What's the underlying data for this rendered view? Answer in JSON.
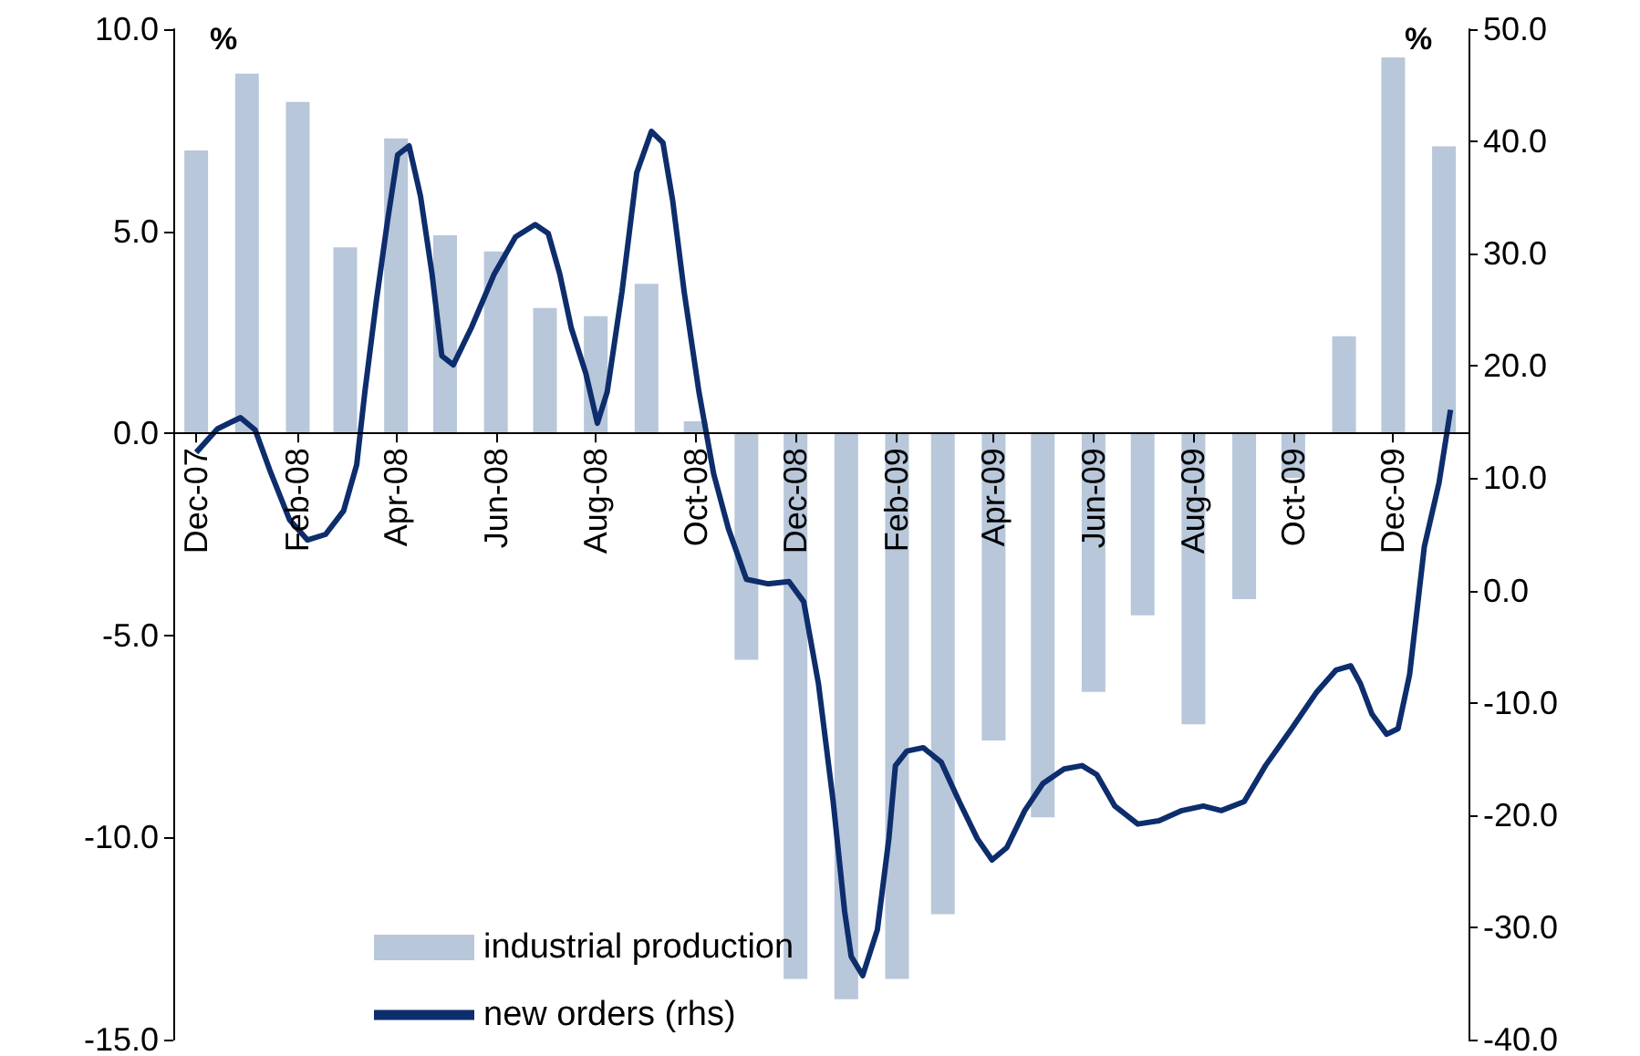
{
  "chart_data": {
    "type": "bar",
    "ylabel": "%",
    "y2label": "%",
    "legend": "bottom",
    "x": [
      "2007-12-15",
      "2008-01-15",
      "2008-02-15",
      "2008-03-15",
      "2008-04-15",
      "2008-05-15",
      "2008-06-15",
      "2008-07-15",
      "2008-08-15",
      "2008-09-15",
      "2008-10-15",
      "2008-11-15",
      "2008-12-15",
      "2009-01-15",
      "2009-02-15",
      "2009-03-15",
      "2009-04-15",
      "2009-05-15",
      "2009-06-15",
      "2009-07-15",
      "2009-08-15",
      "2009-09-15",
      "2009-10-15",
      "2009-11-15",
      "2009-12-15",
      "2010-01-15"
    ],
    "xlim": [
      "2007-12-01",
      "2010-01-30"
    ],
    "xticks": [
      {
        "value": "2007-12-15",
        "label": "Dec-07"
      },
      {
        "value": "2008-02-15",
        "label": "Feb-08"
      },
      {
        "value": "2008-04-15",
        "label": "Apr-08"
      },
      {
        "value": "2008-06-15",
        "label": "Jun-08"
      },
      {
        "value": "2008-08-15",
        "label": "Aug-08"
      },
      {
        "value": "2008-10-15",
        "label": "Oct-08"
      },
      {
        "value": "2008-12-15",
        "label": "Dec-08"
      },
      {
        "value": "2009-02-15",
        "label": "Feb-09"
      },
      {
        "value": "2009-04-15",
        "label": "Apr-09"
      },
      {
        "value": "2009-06-15",
        "label": "Jun-09"
      },
      {
        "value": "2009-08-15",
        "label": "Aug-09"
      },
      {
        "value": "2009-10-15",
        "label": "Oct-09"
      },
      {
        "value": "2009-12-15",
        "label": "Dec-09"
      }
    ],
    "ylim": [
      -15,
      10
    ],
    "yticks": [
      {
        "value": -15,
        "label": "-15.0"
      },
      {
        "value": -10,
        "label": "-10.0"
      },
      {
        "value": -5,
        "label": "-5.0"
      },
      {
        "value": 0,
        "label": "0.0"
      },
      {
        "value": 5,
        "label": "5.0"
      },
      {
        "value": 10,
        "label": "10.0"
      }
    ],
    "y2lim": [
      -40,
      50
    ],
    "y2ticks": [
      {
        "value": -40,
        "label": "-40.0"
      },
      {
        "value": -30,
        "label": "-30.0"
      },
      {
        "value": -20,
        "label": "-20.0"
      },
      {
        "value": -10,
        "label": "-10.0"
      },
      {
        "value": 0,
        "label": "0.0"
      },
      {
        "value": 10,
        "label": "10.0"
      },
      {
        "value": 20,
        "label": "20.0"
      },
      {
        "value": 30,
        "label": "30.0"
      },
      {
        "value": 40,
        "label": "40.0"
      },
      {
        "value": 50,
        "label": "50.0"
      }
    ],
    "series": [
      {
        "name": "industrial production",
        "color": "#b8c7da",
        "values": [
          7.0,
          8.9,
          8.2,
          4.6,
          7.3,
          4.9,
          4.5,
          3.1,
          2.9,
          3.7,
          0.3,
          -5.6,
          -13.5,
          -14.0,
          -13.5,
          -11.9,
          -7.6,
          -9.5,
          -6.4,
          -4.5,
          -7.2,
          -4.1,
          -1.1,
          2.4,
          9.3,
          7.1
        ]
      },
      {
        "name": "new orders (rhs)",
        "type": "line",
        "axis": "y2",
        "color": "#0d2d6c",
        "x": [
          "2007-12-15",
          "2007-12-28",
          "2008-01-11",
          "2008-01-20",
          "2008-01-29",
          "2008-02-10",
          "2008-02-21",
          "2008-03-03",
          "2008-03-14",
          "2008-03-22",
          "2008-03-27",
          "2008-04-03",
          "2008-04-10",
          "2008-04-16",
          "2008-04-23",
          "2008-04-30",
          "2008-05-07",
          "2008-05-13",
          "2008-05-20",
          "2008-05-31",
          "2008-06-14",
          "2008-06-27",
          "2008-07-09",
          "2008-07-17",
          "2008-07-24",
          "2008-07-31",
          "2008-08-09",
          "2008-08-16",
          "2008-08-22",
          "2008-08-31",
          "2008-09-09",
          "2008-09-18",
          "2008-09-25",
          "2008-10-01",
          "2008-10-08",
          "2008-10-17",
          "2008-10-26",
          "2008-11-04",
          "2008-11-15",
          "2008-11-28",
          "2008-12-11",
          "2008-12-20",
          "2008-12-29",
          "2009-01-07",
          "2009-01-14",
          "2009-01-18",
          "2009-01-25",
          "2009-02-03",
          "2009-02-10",
          "2009-02-14",
          "2009-02-21",
          "2009-03-03",
          "2009-03-14",
          "2009-03-25",
          "2009-04-05",
          "2009-04-14",
          "2009-04-23",
          "2009-05-04",
          "2009-05-15",
          "2009-05-28",
          "2009-06-08",
          "2009-06-17",
          "2009-06-28",
          "2009-07-12",
          "2009-07-25",
          "2009-08-08",
          "2009-08-21",
          "2009-09-01",
          "2009-09-15",
          "2009-09-28",
          "2009-10-14",
          "2009-10-29",
          "2009-11-10",
          "2009-11-19",
          "2009-11-25",
          "2009-12-02",
          "2009-12-11",
          "2009-12-18",
          "2009-12-25",
          "2010-01-03",
          "2010-01-12",
          "2010-01-19"
        ],
        "values": [
          12.3,
          14.4,
          15.4,
          14.3,
          10.7,
          6.3,
          4.5,
          5.0,
          7.1,
          11.2,
          17.7,
          25.8,
          33.1,
          38.8,
          39.6,
          35.1,
          28.2,
          20.9,
          20.1,
          23.4,
          28.2,
          31.5,
          32.6,
          31.8,
          28.2,
          23.4,
          19.3,
          14.9,
          17.7,
          26.6,
          37.2,
          40.9,
          39.9,
          34.7,
          26.6,
          17.7,
          10.4,
          5.5,
          1.0,
          0.6,
          0.8,
          -1.0,
          -8.3,
          -18.8,
          -28.6,
          -32.6,
          -34.3,
          -30.2,
          -22.1,
          -15.6,
          -14.3,
          -14.0,
          -15.3,
          -18.8,
          -22.1,
          -24.0,
          -22.9,
          -19.6,
          -17.2,
          -15.9,
          -15.6,
          -16.4,
          -19.2,
          -20.8,
          -20.5,
          -19.6,
          -19.2,
          -19.6,
          -18.8,
          -15.6,
          -12.3,
          -9.1,
          -7.1,
          -6.7,
          -8.3,
          -11.0,
          -12.8,
          -12.3,
          -7.5,
          3.9,
          9.6,
          16.1
        ]
      }
    ]
  }
}
